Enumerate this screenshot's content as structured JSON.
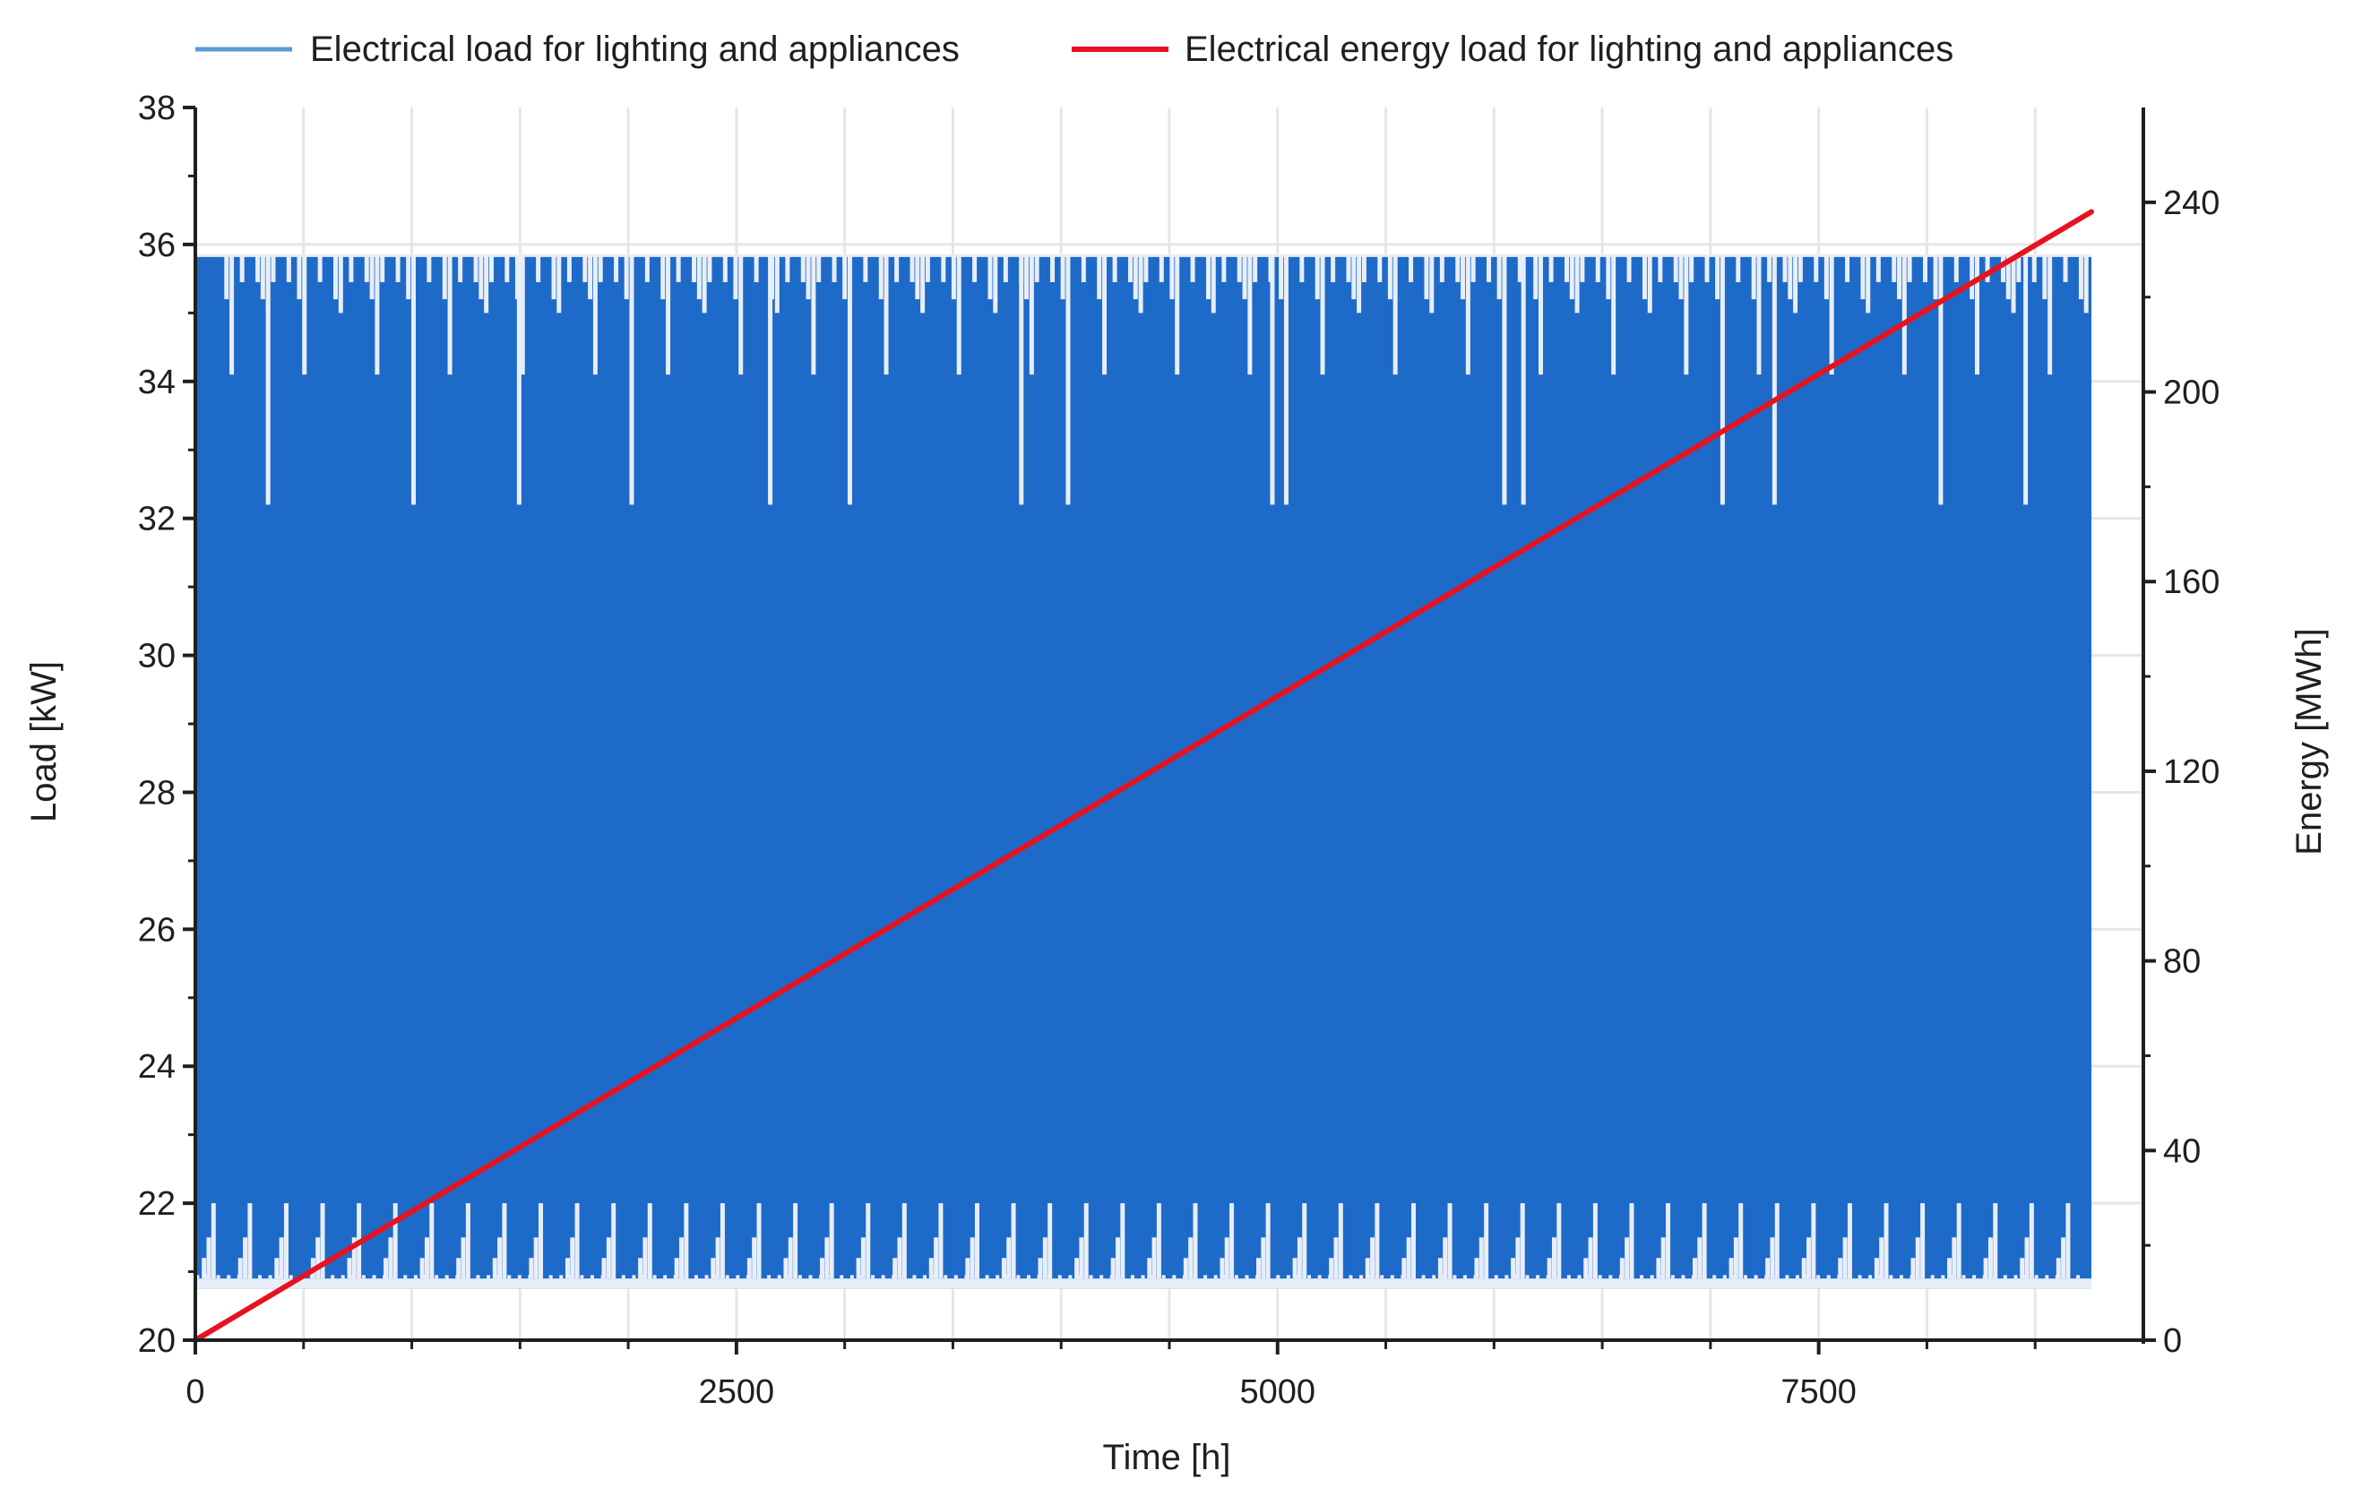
{
  "chart_data": {
    "type": "line",
    "title": "",
    "xlabel": "Time [h]",
    "ylabel": "Load [kW]",
    "y2label": "Energy [MWh]",
    "xlim": [
      0,
      9000
    ],
    "ylim": [
      20,
      38
    ],
    "y2lim": [
      0,
      260
    ],
    "xticks": [
      0,
      2500,
      5000,
      7500
    ],
    "yticks": [
      20,
      22,
      24,
      26,
      28,
      30,
      32,
      34,
      36,
      38
    ],
    "y2ticks": [
      0,
      40,
      80,
      120,
      160,
      200,
      240
    ],
    "grid": true,
    "legend_position": "top",
    "colors": {
      "load": "#1e6ac8",
      "energy": "#e8121e",
      "gap": "#e8eef8",
      "axis": "#1f1f1f",
      "grid": "#e6e6e6"
    },
    "series": [
      {
        "name": "Electrical load for lighting and appliances",
        "axis": "left",
        "style": "high-frequency hourly signal",
        "x_range": [
          0,
          8760
        ],
        "band": [
          20.75,
          35.85
        ],
        "weekly_low_dips": 35.2,
        "monthly_low_dips": 34.1,
        "quarterly_low_dips": 32.2,
        "weekly_high_spikes": 21.5,
        "peak_high_spikes": 22.0
      },
      {
        "name": "Electrical energy load for lighting and appliances",
        "axis": "right",
        "style": "cumulative line",
        "x": [
          0,
          8760
        ],
        "values": [
          0,
          238
        ]
      }
    ]
  }
}
